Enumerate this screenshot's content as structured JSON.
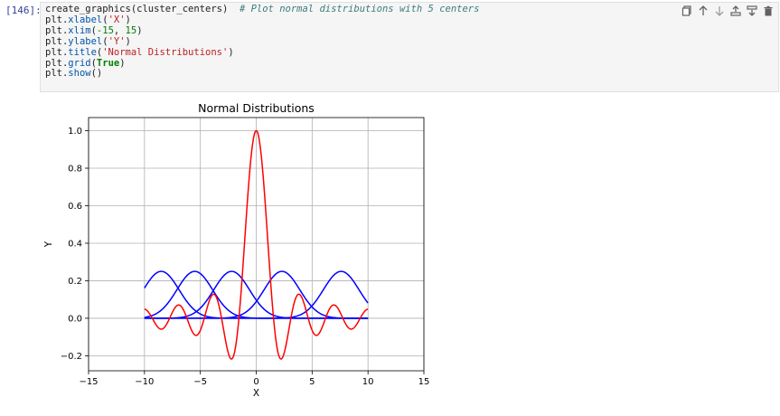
{
  "cell": {
    "prompt": "[146]:",
    "code_lines": [
      [
        {
          "t": "create_graphics(cluster_centers)  ",
          "c": "attr"
        },
        {
          "t": "# Plot normal distributions with 5 centers",
          "c": "cm"
        }
      ],
      [
        {
          "t": "plt.",
          "c": "attr"
        },
        {
          "t": "xlabel",
          "c": "fn"
        },
        {
          "t": "(",
          "c": "attr"
        },
        {
          "t": "'X'",
          "c": "str"
        },
        {
          "t": ")",
          "c": "attr"
        }
      ],
      [
        {
          "t": "plt.",
          "c": "attr"
        },
        {
          "t": "xlim",
          "c": "fn"
        },
        {
          "t": "(",
          "c": "attr"
        },
        {
          "t": "-15",
          "c": "num"
        },
        {
          "t": ", ",
          "c": "attr"
        },
        {
          "t": "15",
          "c": "num"
        },
        {
          "t": ")",
          "c": "attr"
        }
      ],
      [
        {
          "t": "plt.",
          "c": "attr"
        },
        {
          "t": "ylabel",
          "c": "fn"
        },
        {
          "t": "(",
          "c": "attr"
        },
        {
          "t": "'Y'",
          "c": "str"
        },
        {
          "t": ")",
          "c": "attr"
        }
      ],
      [
        {
          "t": "plt.",
          "c": "attr"
        },
        {
          "t": "title",
          "c": "fn"
        },
        {
          "t": "(",
          "c": "attr"
        },
        {
          "t": "'Normal Distributions'",
          "c": "str"
        },
        {
          "t": ")",
          "c": "attr"
        }
      ],
      [
        {
          "t": "plt.",
          "c": "attr"
        },
        {
          "t": "grid",
          "c": "fn"
        },
        {
          "t": "(",
          "c": "attr"
        },
        {
          "t": "True",
          "c": "kw"
        },
        {
          "t": ")",
          "c": "attr"
        }
      ],
      [
        {
          "t": "plt.",
          "c": "attr"
        },
        {
          "t": "show",
          "c": "fn"
        },
        {
          "t": "()",
          "c": "attr"
        }
      ]
    ],
    "toolbar_icons": [
      "duplicate-icon",
      "move-up-icon",
      "move-down-icon",
      "insert-above-icon",
      "insert-below-icon",
      "delete-icon"
    ]
  },
  "chart_data": {
    "type": "line",
    "title": "Normal Distributions",
    "xlabel": "X",
    "ylabel": "Y",
    "xlim": [
      -15,
      15
    ],
    "ylim": [
      -0.28,
      1.07
    ],
    "xticks": [
      -15,
      -10,
      -5,
      0,
      5,
      10,
      15
    ],
    "xtick_labels": [
      "−15",
      "−10",
      "−5",
      "0",
      "5",
      "10",
      "15"
    ],
    "yticks": [
      -0.2,
      0.0,
      0.2,
      0.4,
      0.6,
      0.8,
      1.0
    ],
    "ytick_labels": [
      "−0.2",
      "0.0",
      "0.2",
      "0.4",
      "0.6",
      "0.8",
      "1.0"
    ],
    "grid": true,
    "normal_curves": {
      "color": "#0000ff",
      "x_range": [
        -10,
        10
      ],
      "sigma": 1.6,
      "peak": 0.25,
      "centers": [
        -8.5,
        -5.5,
        -2.2,
        2.3,
        7.6
      ]
    },
    "sinc_curve": {
      "color": "#ff0000",
      "x_range": [
        -10,
        10
      ],
      "peak": 1.0,
      "zero_spacing": 1.55
    }
  }
}
